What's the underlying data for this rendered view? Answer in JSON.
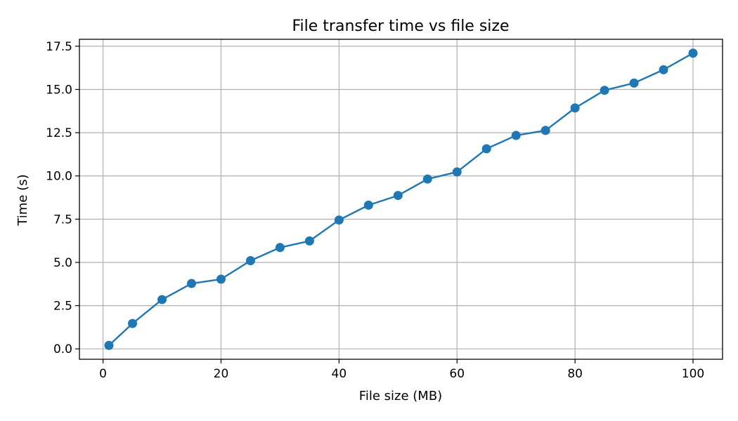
{
  "chart_data": {
    "type": "line",
    "title": "File transfer time vs file size",
    "xlabel": "File size (MB)",
    "ylabel": "Time (s)",
    "xlim": [
      -4,
      105
    ],
    "ylim": [
      -0.6,
      17.9
    ],
    "x_ticks": [
      0,
      20,
      40,
      60,
      80,
      100
    ],
    "y_ticks": [
      0.0,
      2.5,
      5.0,
      7.5,
      10.0,
      12.5,
      15.0,
      17.5
    ],
    "x_tick_labels": [
      "0",
      "20",
      "40",
      "60",
      "80",
      "100"
    ],
    "y_tick_labels": [
      "0.0",
      "2.5",
      "5.0",
      "7.5",
      "10.0",
      "12.5",
      "15.0",
      "17.5"
    ],
    "grid": true,
    "series": [
      {
        "color": "#1f77b4",
        "marker": "circle",
        "x": [
          1,
          5,
          10,
          15,
          20,
          25,
          30,
          35,
          40,
          45,
          50,
          55,
          60,
          65,
          70,
          75,
          80,
          85,
          90,
          95,
          100
        ],
        "y": [
          0.2,
          1.47,
          2.85,
          3.78,
          4.03,
          5.1,
          5.86,
          6.24,
          7.45,
          8.31,
          8.87,
          9.82,
          10.23,
          11.57,
          12.34,
          12.63,
          13.93,
          14.95,
          15.37,
          16.14,
          17.1
        ]
      }
    ]
  }
}
